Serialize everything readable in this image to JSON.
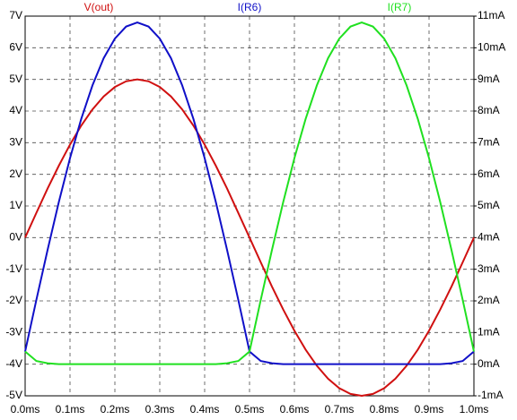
{
  "chart_data": {
    "type": "line",
    "x": [
      0,
      0.025,
      0.05,
      0.075,
      0.1,
      0.125,
      0.15,
      0.175,
      0.2,
      0.225,
      0.25,
      0.275,
      0.3,
      0.325,
      0.35,
      0.375,
      0.4,
      0.425,
      0.45,
      0.475,
      0.5,
      0.525,
      0.55,
      0.575,
      0.6,
      0.625,
      0.65,
      0.675,
      0.7,
      0.725,
      0.75,
      0.775,
      0.8,
      0.825,
      0.85,
      0.875,
      0.9,
      0.925,
      0.95,
      0.975,
      1.0
    ],
    "series": [
      {
        "name": "V(out)",
        "color": "#d01010",
        "axis": "y",
        "values": [
          0,
          0.78,
          1.55,
          2.27,
          2.94,
          3.54,
          4.05,
          4.46,
          4.76,
          4.94,
          5,
          4.94,
          4.76,
          4.46,
          4.05,
          3.54,
          2.94,
          2.27,
          1.55,
          0.78,
          0,
          -0.78,
          -1.55,
          -2.27,
          -2.94,
          -3.54,
          -4.05,
          -4.46,
          -4.76,
          -4.94,
          -5,
          -4.94,
          -4.76,
          -4.46,
          -4.05,
          -3.54,
          -2.94,
          -2.27,
          -1.55,
          -0.78,
          0
        ]
      },
      {
        "name": "I(R6)",
        "color": "#1010c8",
        "axis": "y2",
        "values": [
          0.4,
          2.03,
          3.61,
          5.12,
          6.51,
          7.75,
          8.81,
          9.67,
          10.29,
          10.67,
          10.8,
          10.67,
          10.29,
          9.67,
          8.81,
          7.75,
          6.51,
          5.12,
          3.61,
          2.03,
          0.4,
          0.1,
          0.03,
          0,
          0,
          0,
          0,
          0,
          0,
          0,
          0,
          0,
          0,
          0,
          0,
          0,
          0,
          0,
          0.03,
          0.1,
          0.4
        ]
      },
      {
        "name": "I(R7)",
        "color": "#20e020",
        "axis": "y2",
        "values": [
          0.4,
          0.1,
          0.03,
          0,
          0,
          0,
          0,
          0,
          0,
          0,
          0,
          0,
          0,
          0,
          0,
          0,
          0,
          0,
          0.03,
          0.1,
          0.4,
          2.03,
          3.61,
          5.12,
          6.51,
          7.75,
          8.81,
          9.67,
          10.29,
          10.67,
          10.8,
          10.67,
          10.29,
          9.67,
          8.81,
          7.75,
          6.51,
          5.12,
          3.61,
          2.03,
          0.4
        ]
      }
    ],
    "xlim": [
      0,
      1.0
    ],
    "xticks": [
      {
        "value": 0,
        "label": "0.0ms"
      },
      {
        "value": 0.1,
        "label": "0.1ms"
      },
      {
        "value": 0.2,
        "label": "0.2ms"
      },
      {
        "value": 0.3,
        "label": "0.3ms"
      },
      {
        "value": 0.4,
        "label": "0.4ms"
      },
      {
        "value": 0.5,
        "label": "0.5ms"
      },
      {
        "value": 0.6,
        "label": "0.6ms"
      },
      {
        "value": 0.7,
        "label": "0.7ms"
      },
      {
        "value": 0.8,
        "label": "0.8ms"
      },
      {
        "value": 0.9,
        "label": "0.9ms"
      },
      {
        "value": 1.0,
        "label": "1.0ms"
      }
    ],
    "ylim": [
      -5,
      7
    ],
    "yticks": [
      {
        "value": -5,
        "label": "-5V"
      },
      {
        "value": -4,
        "label": "-4V"
      },
      {
        "value": -3,
        "label": "-3V"
      },
      {
        "value": -2,
        "label": "-2V"
      },
      {
        "value": -1,
        "label": "-1V"
      },
      {
        "value": 0,
        "label": "0V"
      },
      {
        "value": 1,
        "label": "1V"
      },
      {
        "value": 2,
        "label": "2V"
      },
      {
        "value": 3,
        "label": "3V"
      },
      {
        "value": 4,
        "label": "4V"
      },
      {
        "value": 5,
        "label": "5V"
      },
      {
        "value": 6,
        "label": "6V"
      },
      {
        "value": 7,
        "label": "7V"
      }
    ],
    "y2lim": [
      -1,
      11
    ],
    "y2ticks": [
      {
        "value": -1,
        "label": "-1mA"
      },
      {
        "value": 0,
        "label": "0mA"
      },
      {
        "value": 1,
        "label": "1mA"
      },
      {
        "value": 2,
        "label": "2mA"
      },
      {
        "value": 3,
        "label": "3mA"
      },
      {
        "value": 4,
        "label": "4mA"
      },
      {
        "value": 5,
        "label": "5mA"
      },
      {
        "value": 6,
        "label": "6mA"
      },
      {
        "value": 7,
        "label": "7mA"
      },
      {
        "value": 8,
        "label": "8mA"
      },
      {
        "value": 9,
        "label": "9mA"
      },
      {
        "value": 10,
        "label": "10mA"
      },
      {
        "value": 11,
        "label": "11mA"
      }
    ],
    "grid": true
  }
}
